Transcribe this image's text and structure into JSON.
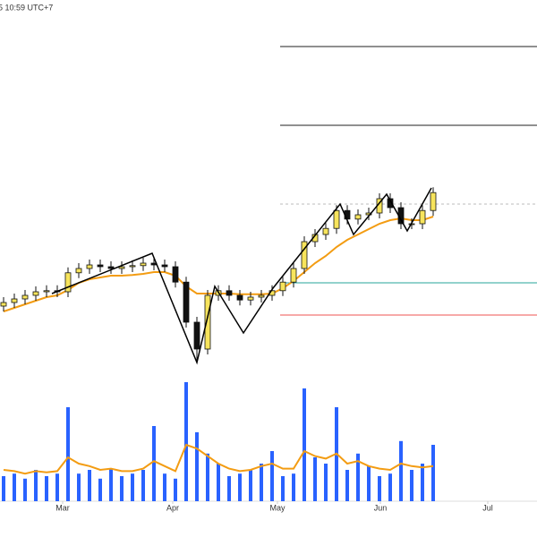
{
  "chart_data": {
    "type": "candlestick",
    "title": "5 10:59 UTC+7",
    "x": [
      1,
      4,
      7,
      10,
      13,
      16,
      19,
      22,
      25,
      28,
      31,
      34,
      37,
      40,
      43,
      46,
      49,
      52,
      55,
      58,
      61,
      64,
      67,
      70,
      73,
      76,
      79,
      82,
      85,
      88,
      91,
      94,
      97,
      100,
      103,
      106,
      109,
      112,
      115,
      118,
      121
    ],
    "open": [
      24.5,
      25.5,
      26.5,
      27.5,
      28.5,
      28.8,
      28.5,
      33.8,
      35,
      36,
      35.5,
      35,
      35.5,
      35.8,
      36.5,
      36,
      35.5,
      31.2,
      20,
      12.5,
      27.5,
      28.8,
      27.5,
      26.2,
      27,
      27.5,
      28.8,
      31.2,
      35,
      42.5,
      44.5,
      46.2,
      51.2,
      48.8,
      50,
      50.5,
      54.5,
      52,
      47.5,
      47.5,
      51.2
    ],
    "high": [
      27,
      28,
      29,
      30,
      30.3,
      30.3,
      35.3,
      36.5,
      37.5,
      37.5,
      37,
      37,
      37.3,
      38,
      38,
      37.5,
      37,
      32.7,
      21.5,
      29,
      30.3,
      30.3,
      29,
      28.5,
      29,
      30.3,
      32.7,
      36.5,
      44,
      46,
      47.7,
      52.7,
      52.7,
      51.5,
      52,
      56,
      56,
      53.5,
      49,
      52.7,
      57.7
    ],
    "low": [
      23,
      24,
      25,
      26,
      27,
      27,
      27,
      32.3,
      33.5,
      34,
      33.5,
      33.5,
      34,
      34.3,
      34.5,
      34,
      29.7,
      18.5,
      8.8,
      11,
      26,
      26,
      24.7,
      24.7,
      25.5,
      26,
      27.3,
      29.7,
      33.5,
      41,
      43,
      44.7,
      47.3,
      47.3,
      48.5,
      49,
      50.5,
      46,
      46,
      46,
      49.7
    ],
    "close": [
      25.5,
      26.5,
      27.5,
      28.5,
      28.8,
      28.5,
      33.8,
      35,
      36,
      35.5,
      35,
      35.5,
      35.8,
      36.5,
      36,
      35.5,
      31.2,
      20,
      12.5,
      27.5,
      28.8,
      27.5,
      26.2,
      27,
      27.5,
      28.8,
      31.2,
      35,
      42.5,
      44.5,
      46.2,
      51.2,
      48.8,
      50,
      50.5,
      54.5,
      52,
      47.5,
      47.5,
      51.2,
      56.2
    ],
    "up_color": "#f7e45c",
    "down_color": "#111111",
    "ma": {
      "color": "#f39c12",
      "values": [
        23,
        24,
        25,
        26,
        27,
        27.5,
        29,
        31,
        32,
        32.5,
        33,
        33,
        33.2,
        33.5,
        34,
        34,
        33,
        30,
        28,
        28,
        28,
        28,
        27.8,
        27.8,
        27.8,
        28,
        29.5,
        31.5,
        34,
        36.5,
        38.5,
        41,
        43,
        44.5,
        46,
        47.5,
        48.5,
        49,
        48.5,
        48.5,
        49.5
      ]
    },
    "zigzag": {
      "color": "#000000",
      "x": [
        14.5,
        42.5,
        55,
        60,
        68,
        76.25,
        95,
        98.75,
        108,
        113.75,
        120.5
      ],
      "values": [
        28,
        39.25,
        8.75,
        30,
        17,
        29.5,
        53,
        44.5,
        55.75,
        45.5,
        57.5
      ]
    },
    "levels": {
      "x_start": 78.25,
      "values": [
        97,
        75,
        53,
        31,
        22
      ],
      "colors": [
        "#222222",
        "#222222",
        "#bbbbbb",
        "#26a69a",
        "#ef5350"
      ],
      "dashed": [
        false,
        false,
        true,
        false,
        false
      ]
    },
    "volume": {
      "color": "#2962ff",
      "values": [
        20,
        22,
        18,
        25,
        20,
        22,
        75,
        22,
        25,
        18,
        26,
        20,
        22,
        25,
        60,
        22,
        18,
        95,
        55,
        38,
        30,
        20,
        22,
        25,
        30,
        40,
        20,
        22,
        90,
        35,
        30,
        75,
        25,
        38,
        28,
        20,
        22,
        48,
        25,
        30,
        45
      ],
      "vlim": [
        0,
        100
      ]
    },
    "volume_ma": {
      "color": "#f39c12",
      "values": [
        25,
        24,
        22,
        24,
        23,
        24,
        35,
        30,
        28,
        25,
        26,
        24,
        24,
        26,
        32,
        28,
        24,
        45,
        42,
        36,
        30,
        26,
        24,
        25,
        28,
        30,
        26,
        26,
        40,
        36,
        34,
        38,
        30,
        32,
        28,
        26,
        25,
        30,
        28,
        27,
        28
      ]
    },
    "xlim": [
      0,
      150
    ],
    "ylim": [
      0,
      110
    ],
    "xticks": [
      {
        "value": 17.5,
        "label": "Mar"
      },
      {
        "value": 48.25,
        "label": "Apr"
      },
      {
        "value": 77.5,
        "label": "May"
      },
      {
        "value": 106.25,
        "label": "Jun"
      },
      {
        "value": 136.25,
        "label": "Jul"
      }
    ]
  }
}
